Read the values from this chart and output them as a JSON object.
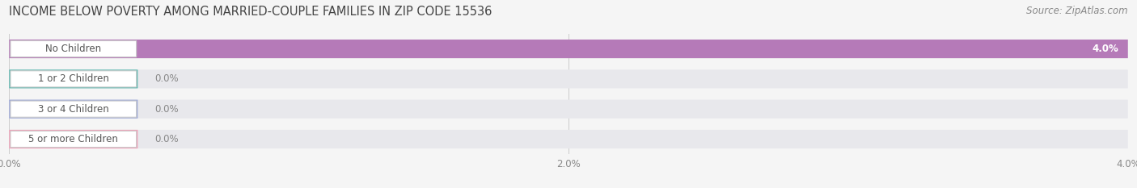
{
  "title": "INCOME BELOW POVERTY AMONG MARRIED-COUPLE FAMILIES IN ZIP CODE 15536",
  "source": "Source: ZipAtlas.com",
  "categories": [
    "No Children",
    "1 or 2 Children",
    "3 or 4 Children",
    "5 or more Children"
  ],
  "values": [
    4.0,
    0.0,
    0.0,
    0.0
  ],
  "bar_colors": [
    "#b57ab8",
    "#5cb8b0",
    "#9ca8d8",
    "#f0a0b8"
  ],
  "bar_bg_color": "#e8e8ec",
  "xlim": [
    0,
    4.0
  ],
  "xticks": [
    0.0,
    2.0,
    4.0
  ],
  "xtick_labels": [
    "0.0%",
    "2.0%",
    "4.0%"
  ],
  "background_color": "#f5f5f5",
  "title_fontsize": 10.5,
  "source_fontsize": 8.5,
  "label_fontsize": 8.5,
  "value_fontsize": 8.5,
  "bar_height": 0.62,
  "fig_width": 14.06,
  "fig_height": 2.33
}
